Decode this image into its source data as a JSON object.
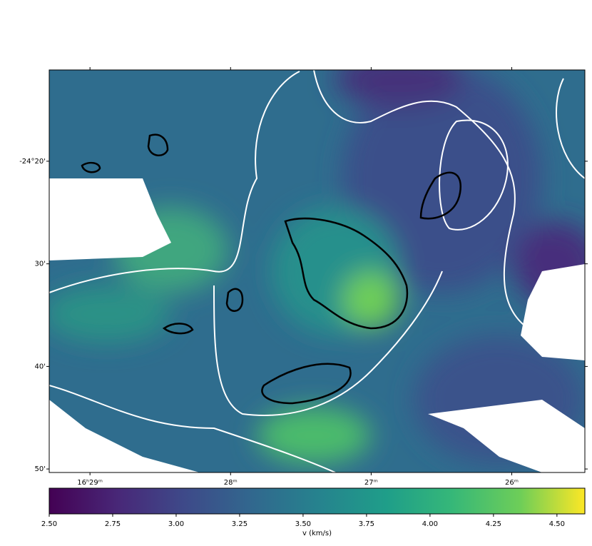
{
  "chart_data": {
    "type": "image",
    "xlim": [
      29.29,
      25.48
    ],
    "xticks": [
      {
        "value": 29,
        "label": "16ʰ29ᵐ"
      },
      {
        "value": 28,
        "label": "28ᵐ"
      },
      {
        "value": 27,
        "label": "27ᵐ"
      },
      {
        "value": 26,
        "label": "26ᵐ"
      }
    ],
    "ylim": [
      -24.839,
      -24.185
    ],
    "yticks": [
      {
        "value": -24.3333,
        "label": "-24°20'"
      },
      {
        "value": -24.5,
        "label": "30'"
      },
      {
        "value": -24.6667,
        "label": "40'"
      },
      {
        "value": -24.8333,
        "label": "50'"
      }
    ],
    "colorbar": {
      "label": "v (km/s)",
      "lim": [
        2.5,
        4.61
      ],
      "colormap": "viridis",
      "ticks": [
        {
          "value": 2.5,
          "label": "2.50"
        },
        {
          "value": 2.75,
          "label": "2.75"
        },
        {
          "value": 3.0,
          "label": "3.00"
        },
        {
          "value": 3.25,
          "label": "3.25"
        },
        {
          "value": 3.5,
          "label": "3.50"
        },
        {
          "value": 3.75,
          "label": "3.75"
        },
        {
          "value": 4.0,
          "label": "4.00"
        },
        {
          "value": 4.25,
          "label": "4.25"
        },
        {
          "value": 4.5,
          "label": "4.50"
        }
      ]
    }
  }
}
